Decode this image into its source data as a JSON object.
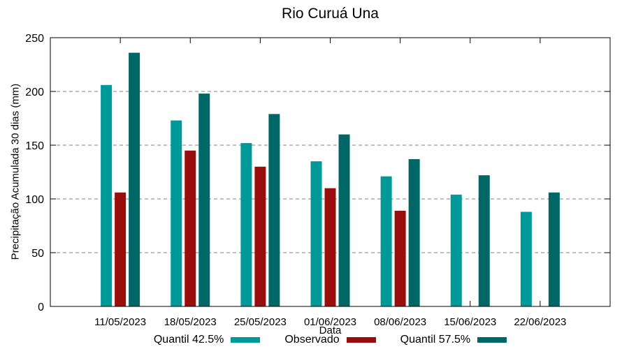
{
  "chart_data": {
    "type": "bar",
    "title": "Rio Curuá Una",
    "xlabel": "Data",
    "ylabel": "Precipitação Acumulada 30 dias (mm)",
    "categories": [
      "11/05/2023",
      "18/05/2023",
      "25/05/2023",
      "01/06/2023",
      "08/06/2023",
      "15/06/2023",
      "22/06/2023"
    ],
    "series": [
      {
        "name": "Quantil 42.5%",
        "color": "#009999",
        "values": [
          206,
          173,
          152,
          135,
          121,
          104,
          88
        ]
      },
      {
        "name": "Observado",
        "color": "#9A0D0D",
        "values": [
          106,
          145,
          130,
          110,
          89,
          null,
          null
        ]
      },
      {
        "name": "Quantil 57.5%",
        "color": "#006666",
        "values": [
          236,
          198,
          179,
          160,
          137,
          122,
          106
        ]
      }
    ],
    "ylim": [
      0,
      250
    ],
    "yticks": [
      0,
      50,
      100,
      150,
      200,
      250
    ],
    "grid": true,
    "grid_color": "#808080",
    "axis_color": "#000000",
    "text_color": "#000000",
    "background": "#ffffff",
    "legend_position": "bottom"
  }
}
